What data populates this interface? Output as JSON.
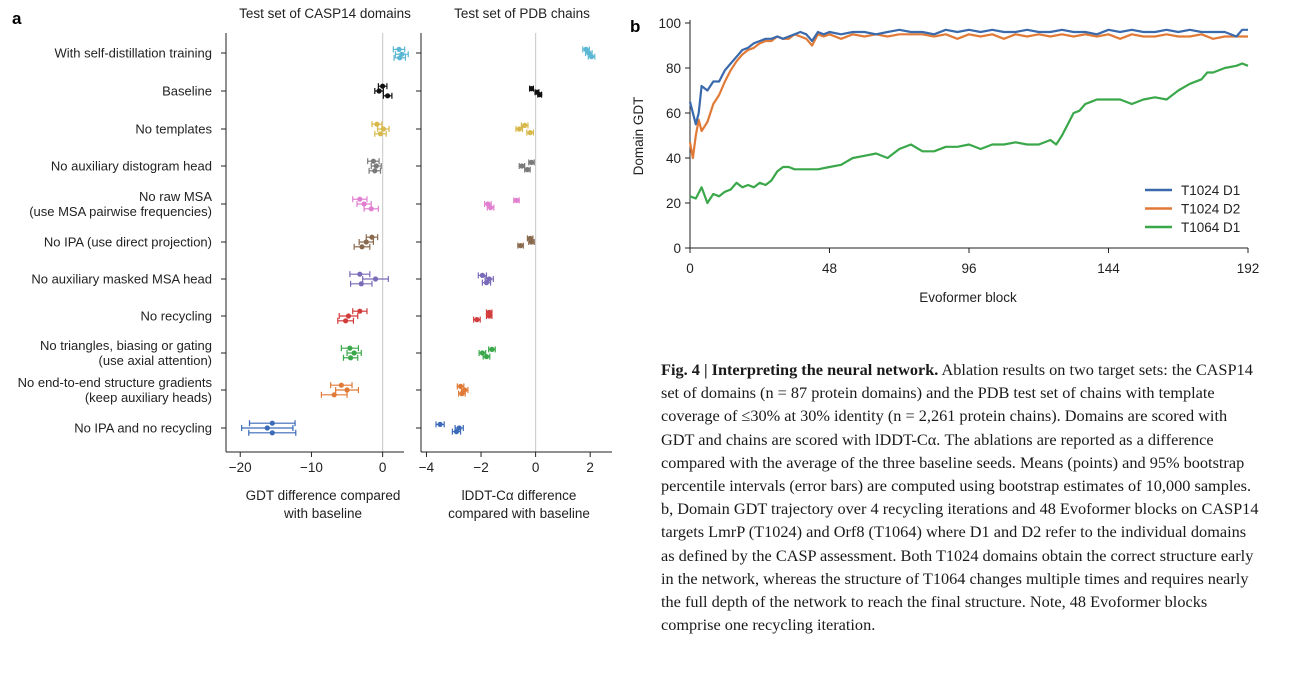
{
  "panel_a": {
    "letter": "a",
    "labels": [
      [
        "With self-distillation training"
      ],
      [
        "Baseline"
      ],
      [
        "No templates"
      ],
      [
        "No auxiliary distogram head"
      ],
      [
        "No raw MSA",
        "(use MSA pairwise frequencies)"
      ],
      [
        "No IPA (use direct projection)"
      ],
      [
        "No auxiliary masked MSA head"
      ],
      [
        "No recycling"
      ],
      [
        "No triangles, biasing or gating",
        "(use axial attention)"
      ],
      [
        "No end-to-end structure gradients",
        "(keep auxiliary heads)"
      ],
      [
        "No IPA and no recycling"
      ]
    ],
    "colors": [
      "#5bb8d4",
      "#111111",
      "#d8b84a",
      "#7a7a7a",
      "#e07fd0",
      "#8a6a4e",
      "#7a6ab8",
      "#d23c3c",
      "#3aa84a",
      "#e07a36",
      "#3a6ab8"
    ],
    "left_title": "Test set of CASP14 domains",
    "right_title": "Test set of PDB chains",
    "left_xlabel": [
      "GDT difference compared",
      "with baseline"
    ],
    "right_xlabel": [
      "lDDT-Cα difference",
      "compared with baseline"
    ]
  },
  "panel_b": {
    "letter": "b"
  },
  "chart_data": [
    {
      "type": "scatter",
      "title": "Test set of CASP14 domains",
      "xlabel": "GDT difference compared with baseline",
      "xlim": [
        -22,
        3
      ],
      "xticks": [
        -20,
        -10,
        0
      ],
      "series": [
        {
          "name": "With self-distillation training",
          "points": [
            [
              2.3,
              -0.15,
              0.8
            ],
            [
              2.7,
              0.05,
              0.9
            ],
            [
              2.4,
              0.2,
              0.8
            ]
          ]
        },
        {
          "name": "Baseline",
          "points": [
            [
              0.0,
              -0.2,
              0.6
            ],
            [
              -0.5,
              0.0,
              0.6
            ],
            [
              0.7,
              0.2,
              0.6
            ]
          ]
        },
        {
          "name": "No templates",
          "points": [
            [
              -0.8,
              -0.2,
              0.7
            ],
            [
              0.1,
              0.0,
              0.8
            ],
            [
              -0.3,
              0.2,
              0.8
            ]
          ]
        },
        {
          "name": "No auxiliary distogram head",
          "points": [
            [
              -1.3,
              -0.2,
              0.8
            ],
            [
              -0.9,
              0.0,
              0.7
            ],
            [
              -1.1,
              0.2,
              0.8
            ]
          ]
        },
        {
          "name": "No raw MSA (use MSA pairwise frequencies)",
          "points": [
            [
              -3.2,
              -0.2,
              1.0
            ],
            [
              -2.6,
              0.0,
              1.0
            ],
            [
              -1.6,
              0.2,
              1.0
            ]
          ]
        },
        {
          "name": "No IPA (use direct projection)",
          "points": [
            [
              -1.5,
              -0.2,
              0.8
            ],
            [
              -2.3,
              0.0,
              1.0
            ],
            [
              -2.9,
              0.2,
              1.1
            ]
          ]
        },
        {
          "name": "No auxiliary masked MSA head",
          "points": [
            [
              -3.2,
              -0.2,
              1.4
            ],
            [
              -1.0,
              0.0,
              1.8
            ],
            [
              -3.0,
              0.2,
              1.5
            ]
          ]
        },
        {
          "name": "No recycling",
          "points": [
            [
              -3.2,
              -0.2,
              1.0
            ],
            [
              -4.8,
              0.0,
              1.3
            ],
            [
              -5.2,
              0.2,
              1.1
            ]
          ]
        },
        {
          "name": "No triangles, biasing or gating (use axial attention)",
          "points": [
            [
              -4.6,
              -0.2,
              1.2
            ],
            [
              -4.0,
              0.0,
              1.0
            ],
            [
              -4.5,
              0.2,
              1.0
            ]
          ]
        },
        {
          "name": "No end-to-end structure gradients (keep auxiliary heads)",
          "points": [
            [
              -5.8,
              -0.2,
              1.5
            ],
            [
              -5.0,
              0.0,
              1.6
            ],
            [
              -6.8,
              0.2,
              1.8
            ]
          ]
        },
        {
          "name": "No IPA and no recycling",
          "points": [
            [
              -15.5,
              -0.2,
              3.2
            ],
            [
              -16.2,
              0.0,
              3.6
            ],
            [
              -15.5,
              0.2,
              3.3
            ]
          ]
        }
      ]
    },
    {
      "type": "scatter",
      "title": "Test set of PDB chains",
      "xlabel": "lDDT-Cα difference compared with baseline",
      "xlim": [
        -4.2,
        2.8
      ],
      "xticks": [
        -4,
        -2,
        0,
        2
      ],
      "series": [
        {
          "name": "With self-distillation training",
          "points": [
            [
              1.85,
              -0.15,
              0.12
            ],
            [
              1.95,
              0.0,
              0.12
            ],
            [
              2.05,
              0.15,
              0.12
            ]
          ]
        },
        {
          "name": "Baseline",
          "points": [
            [
              -0.15,
              -0.1,
              0.07
            ],
            [
              0.05,
              0.05,
              0.07
            ],
            [
              0.15,
              0.15,
              0.07
            ]
          ]
        },
        {
          "name": "No templates",
          "points": [
            [
              -0.4,
              -0.15,
              0.12
            ],
            [
              -0.6,
              0.0,
              0.12
            ],
            [
              -0.2,
              0.15,
              0.12
            ]
          ]
        },
        {
          "name": "No auxiliary distogram head",
          "points": [
            [
              -0.15,
              -0.15,
              0.1
            ],
            [
              -0.5,
              0.0,
              0.1
            ],
            [
              -0.3,
              0.15,
              0.1
            ]
          ]
        },
        {
          "name": "No raw MSA (use MSA pairwise frequencies)",
          "points": [
            [
              -0.7,
              -0.15,
              0.1
            ],
            [
              -1.75,
              0.0,
              0.12
            ],
            [
              -1.65,
              0.15,
              0.12
            ]
          ]
        },
        {
          "name": "No IPA (use direct projection)",
          "points": [
            [
              -0.2,
              -0.15,
              0.1
            ],
            [
              -0.15,
              0.0,
              0.1
            ],
            [
              -0.55,
              0.15,
              0.1
            ]
          ]
        },
        {
          "name": "No auxiliary masked MSA head",
          "points": [
            [
              -1.95,
              -0.15,
              0.15
            ],
            [
              -1.7,
              0.0,
              0.15
            ],
            [
              -1.8,
              0.15,
              0.15
            ]
          ]
        },
        {
          "name": "No recycling",
          "points": [
            [
              -1.7,
              -0.15,
              0.1
            ],
            [
              -1.7,
              0.0,
              0.1
            ],
            [
              -2.15,
              0.15,
              0.12
            ]
          ]
        },
        {
          "name": "No triangles, biasing or gating (use axial attention)",
          "points": [
            [
              -1.6,
              -0.15,
              0.12
            ],
            [
              -1.95,
              0.0,
              0.12
            ],
            [
              -1.8,
              0.15,
              0.12
            ]
          ]
        },
        {
          "name": "No end-to-end structure gradients (keep auxiliary heads)",
          "points": [
            [
              -2.75,
              -0.15,
              0.12
            ],
            [
              -2.6,
              0.0,
              0.12
            ],
            [
              -2.7,
              0.15,
              0.12
            ]
          ]
        },
        {
          "name": "No IPA and no recycling",
          "points": [
            [
              -3.5,
              -0.15,
              0.15
            ],
            [
              -2.8,
              0.0,
              0.15
            ],
            [
              -2.9,
              0.15,
              0.15
            ]
          ]
        }
      ]
    },
    {
      "type": "line",
      "xlabel": "Evoformer block",
      "ylabel": "Domain GDT",
      "xlim": [
        0,
        192
      ],
      "ylim": [
        0,
        100
      ],
      "xticks": [
        0,
        48,
        96,
        144,
        192
      ],
      "yticks": [
        0,
        20,
        40,
        60,
        80,
        100
      ],
      "legend": "bottom-right",
      "series": [
        {
          "name": "T1024 D1",
          "color": "#3a6aac",
          "x": [
            0,
            2,
            3,
            4,
            6,
            8,
            10,
            12,
            14,
            16,
            18,
            20,
            22,
            24,
            26,
            28,
            30,
            32,
            34,
            36,
            38,
            40,
            42,
            44,
            46,
            48,
            52,
            56,
            60,
            64,
            68,
            72,
            76,
            80,
            84,
            88,
            92,
            96,
            100,
            104,
            108,
            112,
            116,
            120,
            124,
            128,
            132,
            136,
            140,
            144,
            148,
            152,
            156,
            160,
            164,
            168,
            172,
            176,
            180,
            184,
            188,
            190,
            192
          ],
          "y": [
            65,
            55,
            60,
            72,
            70,
            74,
            74,
            79,
            82,
            85,
            88,
            89,
            91,
            92,
            93,
            93,
            94,
            93,
            94,
            95,
            96,
            95,
            92,
            96,
            95,
            96,
            95,
            96,
            96,
            95,
            96,
            97,
            96,
            96,
            95,
            97,
            96,
            97,
            96,
            97,
            96,
            96,
            97,
            96,
            96,
            97,
            96,
            96,
            95,
            97,
            96,
            97,
            96,
            96,
            97,
            96,
            97,
            96,
            96,
            96,
            94,
            97,
            97
          ]
        },
        {
          "name": "T1024 D2",
          "color": "#e07a36",
          "x": [
            0,
            1,
            2,
            3,
            4,
            6,
            8,
            10,
            12,
            14,
            16,
            18,
            20,
            22,
            24,
            26,
            28,
            30,
            32,
            34,
            36,
            38,
            40,
            42,
            44,
            46,
            48,
            52,
            56,
            60,
            64,
            68,
            72,
            76,
            80,
            84,
            88,
            92,
            96,
            100,
            104,
            108,
            112,
            116,
            120,
            124,
            128,
            132,
            136,
            140,
            144,
            148,
            152,
            156,
            160,
            164,
            168,
            172,
            176,
            180,
            184,
            188,
            190,
            192
          ],
          "y": [
            47,
            40,
            50,
            57,
            52,
            56,
            64,
            68,
            74,
            79,
            83,
            86,
            88,
            89,
            91,
            92,
            92,
            94,
            93,
            93,
            95,
            94,
            93,
            90,
            95,
            94,
            95,
            93,
            95,
            94,
            95,
            94,
            95,
            95,
            95,
            94,
            95,
            93,
            95,
            94,
            95,
            93,
            95,
            94,
            95,
            94,
            95,
            94,
            95,
            94,
            95,
            93,
            95,
            94,
            94,
            95,
            94,
            94,
            95,
            93,
            94,
            94,
            94,
            94
          ]
        },
        {
          "name": "T1064 D1",
          "color": "#3aa84a",
          "x": [
            0,
            2,
            4,
            6,
            8,
            10,
            12,
            14,
            16,
            18,
            20,
            22,
            24,
            26,
            28,
            30,
            32,
            34,
            36,
            38,
            40,
            44,
            48,
            52,
            56,
            60,
            64,
            68,
            72,
            76,
            80,
            84,
            88,
            92,
            96,
            100,
            104,
            108,
            112,
            116,
            120,
            124,
            126,
            128,
            130,
            132,
            134,
            136,
            138,
            140,
            144,
            148,
            152,
            156,
            160,
            164,
            168,
            172,
            176,
            178,
            180,
            184,
            188,
            190,
            192
          ],
          "y": [
            23,
            22,
            27,
            20,
            24,
            23,
            25,
            26,
            29,
            27,
            28,
            27,
            29,
            28,
            30,
            34,
            36,
            36,
            35,
            35,
            35,
            35,
            36,
            37,
            40,
            41,
            42,
            40,
            44,
            46,
            43,
            43,
            45,
            45,
            46,
            44,
            46,
            46,
            47,
            46,
            46,
            48,
            46,
            50,
            55,
            60,
            61,
            64,
            65,
            66,
            66,
            66,
            64,
            66,
            67,
            66,
            70,
            73,
            75,
            78,
            78,
            80,
            81,
            82,
            81
          ]
        }
      ]
    }
  ],
  "caption": {
    "fig": "Fig. 4 | Interpreting the neural network.",
    "lines": [
      "Ablation results on two target sets:",
      "the CASP14 set of domains (n = 87 protein domains) and the PDB test set of",
      "chains with template coverage of ≤30% at 30% identity (n = 2,261 protein",
      "chains). Domains are scored with GDT and chains are scored with lDDT-Cα. The",
      "ablations are reported as a difference compared with the average of the three",
      "baseline seeds. Means (points) and 95% bootstrap percentile intervals (error",
      "bars) are computed using bootstrap estimates of 10,000 samples. b, Domain",
      "GDT trajectory over 4 recycling iterations and 48 Evoformer blocks on CASP14",
      "targets LmrP (T1024) and Orf8 (T1064) where D1 and D2 refer to the individual",
      "domains as defined by the CASP assessment. Both T1024 domains obtain the",
      "correct structure early in the network, whereas the structure of T1064 changes",
      "multiple times and requires nearly the full depth of the network to reach the",
      "final structure. Note, 48 Evoformer blocks comprise one recycling iteration."
    ]
  }
}
